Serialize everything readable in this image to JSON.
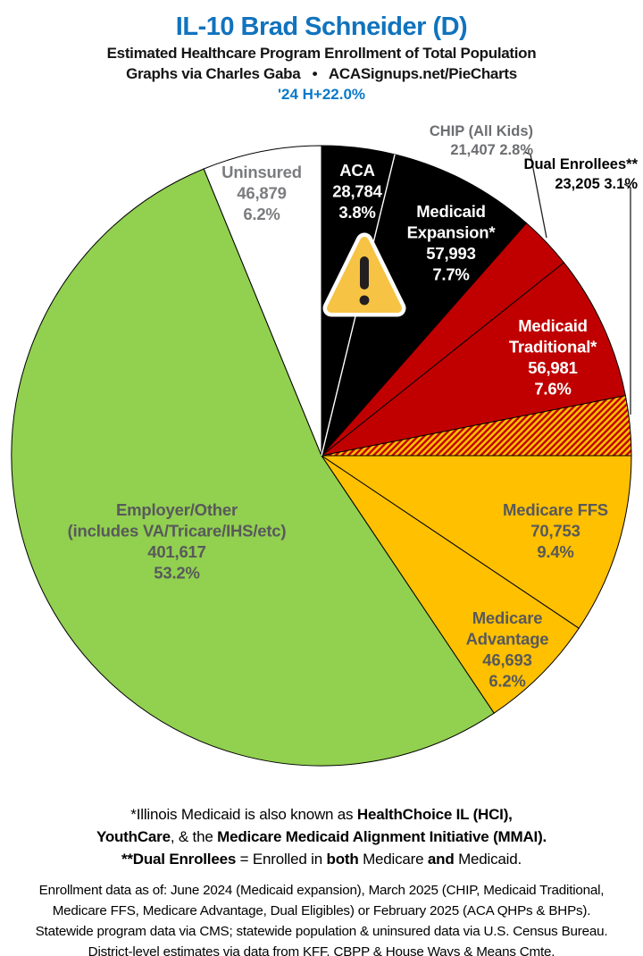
{
  "header": {
    "title": "IL-10 Brad Schneider (D)",
    "subtitle": "Estimated Healthcare Program Enrollment of Total Population",
    "attribution": "Graphs via Charles Gaba   •   ACASignups.net/PieCharts",
    "trend": "'24 H+22.0%"
  },
  "colors": {
    "title_blue": "#1173BD",
    "trend_blue": "#0B79C8",
    "gray_label": "#58595B",
    "black_slice": "#000000",
    "red_slice": "#C00000",
    "gold_slice": "#FFC000",
    "green_slice": "#92D050",
    "white_slice": "#FFFFFF"
  },
  "icons": {
    "warning": {
      "name": "warning-triangle-icon",
      "fill": "#F6C344",
      "border_color": "#FFFFFF",
      "mark_color": "#231F20"
    }
  },
  "chart_data": {
    "type": "pie",
    "title": "IL-10 Brad Schneider (D)",
    "subtitle": "Estimated Healthcare Program Enrollment of Total Population",
    "units": "people",
    "start_angle_deg": 0,
    "direction": "clockwise",
    "legend_position": "none",
    "hatch": {
      "bg": "#FFC000",
      "stripe": "#C00000"
    },
    "slices": [
      {
        "slug": "aca",
        "label": "ACA",
        "value": 28784,
        "pct": 3.8,
        "color": "#000000",
        "text_color": "#FFFFFF",
        "lines": [
          "ACA",
          "28,784",
          "3.8%"
        ]
      },
      {
        "slug": "medicaid-expansion",
        "label": "Medicaid Expansion*",
        "value": 57993,
        "pct": 7.7,
        "color": "#000000",
        "text_color": "#FFFFFF",
        "lines": [
          "Medicaid",
          "Expansion*",
          "57,993",
          "7.7%"
        ]
      },
      {
        "slug": "chip",
        "label": "CHIP (All Kids)",
        "value": 21407,
        "pct": 2.8,
        "color": "#C00000",
        "label_outside": true
      },
      {
        "slug": "medicaid-traditional",
        "label": "Medicaid Traditional*",
        "value": 56981,
        "pct": 7.6,
        "color": "#C00000",
        "text_color": "#FFFFFF",
        "lines": [
          "Medicaid",
          "Traditional*",
          "56,981",
          "7.6%"
        ]
      },
      {
        "slug": "dual-enrollees",
        "label": "Dual Enrollees**",
        "value": 23205,
        "pct": 3.1,
        "color": "hatch",
        "label_outside": true
      },
      {
        "slug": "medicare-ffs",
        "label": "Medicare FFS",
        "value": 70753,
        "pct": 9.4,
        "color": "#FFC000",
        "text_color": "#58595B",
        "lines": [
          "Medicare FFS",
          "70,753",
          "9.4%"
        ]
      },
      {
        "slug": "medicare-advantage",
        "label": "Medicare Advantage",
        "value": 46693,
        "pct": 6.2,
        "color": "#FFC000",
        "text_color": "#58595B",
        "lines": [
          "Medicare",
          "Advantage",
          "46,693",
          "6.2%"
        ]
      },
      {
        "slug": "employer-other",
        "label": "Employer/Other (includes VA/Tricare/IHS/etc)",
        "value": 401617,
        "pct": 53.2,
        "color": "#92D050",
        "text_color": "#58595B",
        "lines": [
          "Employer/Other",
          "(includes VA/Tricare/IHS/etc)",
          "401,617",
          "53.2%"
        ]
      },
      {
        "slug": "uninsured",
        "label": "Uninsured",
        "value": 46879,
        "pct": 6.2,
        "color": "#FFFFFF",
        "text_color": "#7B7C7F",
        "lines": [
          "Uninsured",
          "46,879",
          "6.2%"
        ]
      }
    ]
  },
  "callouts": {
    "chip": {
      "line1": "CHIP (All Kids)",
      "line2": "21,407 2.8%"
    },
    "dual": {
      "line1": "Dual Enrollees**",
      "line2": "23,205 3.1%"
    }
  },
  "footnotes": {
    "aliases": [
      [
        {
          "t": "*Illinois Medicaid is also known as ",
          "b": 0
        },
        {
          "t": "HealthChoice IL (HCI),",
          "b": 1
        }
      ],
      [
        {
          "t": "YouthCare",
          "b": 1
        },
        {
          "t": ", & the ",
          "b": 0
        },
        {
          "t": "Medicare Medicaid Alignment Initiative (MMAI).",
          "b": 1
        }
      ],
      [
        {
          "t": "**Dual Enrollees",
          "b": 1
        },
        {
          "t": " = Enrolled in ",
          "b": 0
        },
        {
          "t": "both",
          "b": 1
        },
        {
          "t": " Medicare ",
          "b": 0
        },
        {
          "t": "and",
          "b": 1
        },
        {
          "t": " Medicaid.",
          "b": 0
        }
      ]
    ],
    "sources": [
      "Enrollment data as of: June 2024 (Medicaid expansion), March 2025 (CHIP, Medicaid Traditional,",
      "Medicare FFS, Medicare Advantage, Dual Eligibles) or February 2025 (ACA QHPs & BHPs).",
      "Statewide program data via CMS; statewide population & uninsured data via U.S. Census Bureau.",
      "District-level estimates via data from KFF, CBPP & House Ways & Means Cmte."
    ]
  }
}
